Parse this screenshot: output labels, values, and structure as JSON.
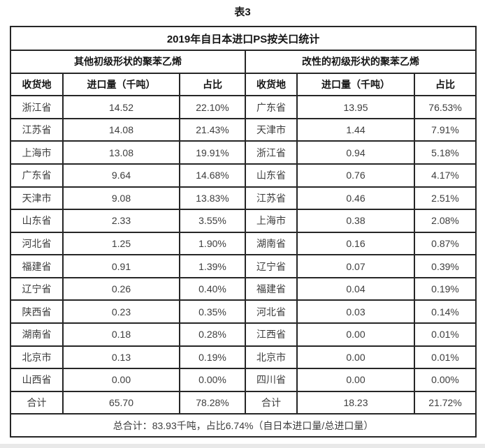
{
  "page": {
    "caption": "表3",
    "footer_note": "总合计：83.93千吨，占比6.74%（自日本进口量/总进口量）"
  },
  "table": {
    "title": "2019年自日本进口PS按关口统计",
    "sections": [
      {
        "header": "其他初级形状的聚苯乙烯",
        "columns": [
          "收货地",
          "进口量（千吨）",
          "占比"
        ],
        "rows": [
          [
            "浙江省",
            "14.52",
            "22.10%"
          ],
          [
            "江苏省",
            "14.08",
            "21.43%"
          ],
          [
            "上海市",
            "13.08",
            "19.91%"
          ],
          [
            "广东省",
            "9.64",
            "14.68%"
          ],
          [
            "天津市",
            "9.08",
            "13.83%"
          ],
          [
            "山东省",
            "2.33",
            "3.55%"
          ],
          [
            "河北省",
            "1.25",
            "1.90%"
          ],
          [
            "福建省",
            "0.91",
            "1.39%"
          ],
          [
            "辽宁省",
            "0.26",
            "0.40%"
          ],
          [
            "陕西省",
            "0.23",
            "0.35%"
          ],
          [
            "湖南省",
            "0.18",
            "0.28%"
          ],
          [
            "北京市",
            "0.13",
            "0.19%"
          ],
          [
            "山西省",
            "0.00",
            "0.00%"
          ]
        ],
        "total": [
          "合计",
          "65.70",
          "78.28%"
        ]
      },
      {
        "header": "改性的初级形状的聚苯乙烯",
        "columns": [
          "收货地",
          "进口量（千吨）",
          "占比"
        ],
        "rows": [
          [
            "广东省",
            "13.95",
            "76.53%"
          ],
          [
            "天津市",
            "1.44",
            "7.91%"
          ],
          [
            "浙江省",
            "0.94",
            "5.18%"
          ],
          [
            "山东省",
            "0.76",
            "4.17%"
          ],
          [
            "江苏省",
            "0.46",
            "2.51%"
          ],
          [
            "上海市",
            "0.38",
            "2.08%"
          ],
          [
            "湖南省",
            "0.16",
            "0.87%"
          ],
          [
            "辽宁省",
            "0.07",
            "0.39%"
          ],
          [
            "福建省",
            "0.04",
            "0.19%"
          ],
          [
            "河北省",
            "0.03",
            "0.14%"
          ],
          [
            "江西省",
            "0.00",
            "0.01%"
          ],
          [
            "北京市",
            "0.00",
            "0.01%"
          ],
          [
            "四川省",
            "0.00",
            "0.00%"
          ]
        ],
        "total": [
          "合计",
          "18.23",
          "21.72%"
        ]
      }
    ]
  }
}
